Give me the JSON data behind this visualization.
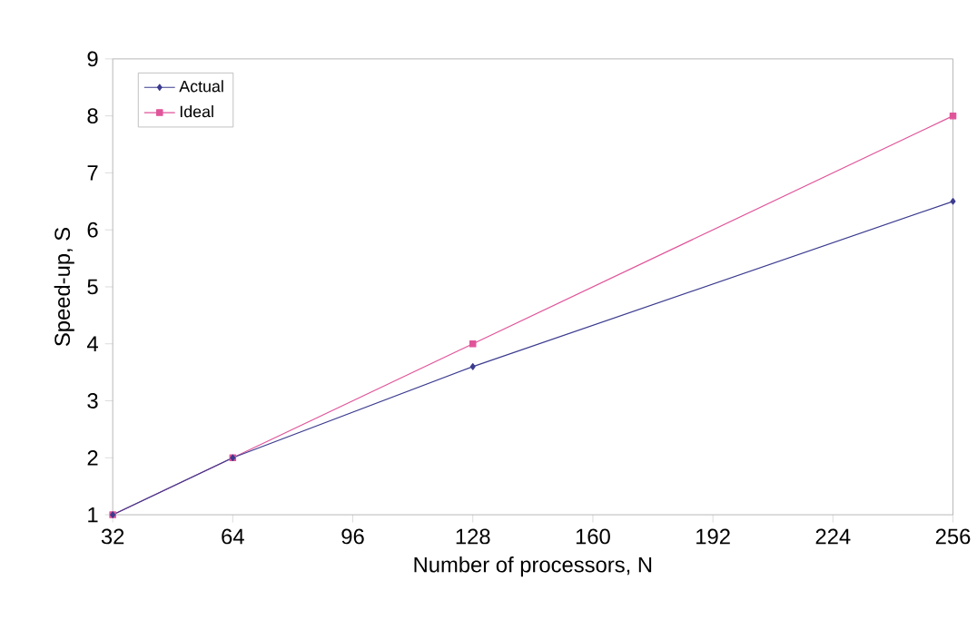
{
  "chart_data": {
    "type": "line",
    "xlabel": "Number of processors, N",
    "ylabel": "Speed-up, S",
    "x": [
      32,
      64,
      128,
      256
    ],
    "series": [
      {
        "name": "Actual",
        "color": "#3b3b8f",
        "marker": "diamond",
        "values": [
          1,
          2,
          3.6,
          6.5
        ]
      },
      {
        "name": "Ideal",
        "color": "#e0559a",
        "marker": "square",
        "values": [
          1,
          2,
          4,
          8
        ]
      }
    ],
    "xlim": [
      32,
      256
    ],
    "xticks": [
      32,
      64,
      96,
      128,
      160,
      192,
      224,
      256
    ],
    "ylim": [
      1,
      9
    ],
    "yticks": [
      1,
      2,
      3,
      4,
      5,
      6,
      7,
      8,
      9
    ],
    "grid": false,
    "legend": "top left"
  }
}
